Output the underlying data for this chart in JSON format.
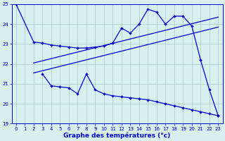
{
  "line1_x": [
    0,
    2,
    3,
    4,
    5,
    6,
    7,
    8,
    9,
    10,
    11,
    12,
    13,
    14,
    15,
    16,
    17,
    18,
    19,
    20,
    21,
    22,
    23
  ],
  "line1_y": [
    25.0,
    23.1,
    23.05,
    22.95,
    22.9,
    22.85,
    22.8,
    22.8,
    22.85,
    22.9,
    23.05,
    23.8,
    23.55,
    24.0,
    24.75,
    24.6,
    24.0,
    24.4,
    24.4,
    23.9,
    22.2,
    20.7,
    19.4
  ],
  "line2_x": [
    2,
    23
  ],
  "line2_y": [
    22.05,
    24.35
  ],
  "line3_x": [
    2,
    23
  ],
  "line3_y": [
    21.55,
    23.85
  ],
  "line4_x": [
    3,
    4,
    5,
    6,
    7,
    8,
    9,
    10,
    11,
    12,
    13,
    14,
    15,
    16,
    17,
    18,
    19,
    20,
    21,
    22,
    23
  ],
  "line4_y": [
    21.5,
    20.9,
    20.85,
    20.8,
    20.5,
    21.5,
    20.7,
    20.5,
    20.4,
    20.35,
    20.3,
    20.25,
    20.2,
    20.1,
    20.0,
    19.9,
    19.8,
    19.7,
    19.6,
    19.5,
    19.4
  ],
  "ylim": [
    19,
    25
  ],
  "xlim": [
    0,
    23
  ],
  "yticks": [
    19,
    20,
    21,
    22,
    23,
    24,
    25
  ],
  "xticks": [
    0,
    1,
    2,
    3,
    4,
    5,
    6,
    7,
    8,
    9,
    10,
    11,
    12,
    13,
    14,
    15,
    16,
    17,
    18,
    19,
    20,
    21,
    22,
    23
  ],
  "xlabel": "Graphe des températures (°c)",
  "line_color": "#0000cc",
  "bg_color": "#d8f0f0",
  "grid_color": "#a8c8c8"
}
